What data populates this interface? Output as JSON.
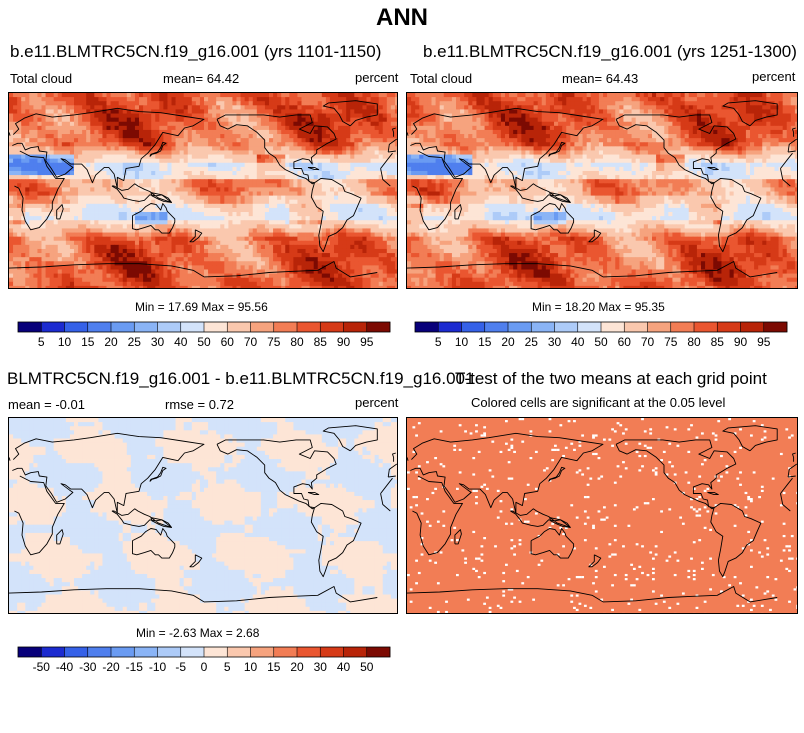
{
  "title": "ANN",
  "panels": [
    {
      "id": "p1",
      "title": "b.e11.BLMTRC5CN.f19_g16.001 (yrs 1101-1150)",
      "left_label": "Total cloud",
      "center_label": "mean=  64.42",
      "right_label": "percent",
      "stats": "Min =  17.69 Max =  95.56",
      "kind": "cloud"
    },
    {
      "id": "p2",
      "title": "b.e11.BLMTRC5CN.f19_g16.001 (yrs 1251-1300)",
      "left_label": "Total cloud",
      "center_label": "mean=  64.43",
      "right_label": "percent",
      "stats": "Min =  18.20 Max =  95.35",
      "kind": "cloud"
    },
    {
      "id": "p3",
      "title": "BLMTRC5CN.f19_g16.001 - b.e11.BLMTRC5CN.f19_g16.001",
      "left_label": "mean =  -0.01",
      "center_label": "rmse =   0.72",
      "right_label": "percent",
      "stats": "Min =  -2.63 Max =   2.68",
      "kind": "diff"
    },
    {
      "id": "p4",
      "title": "T-test of the two means at each grid point",
      "subtitle": "Colored cells are significant at the 0.05 level",
      "kind": "ttest"
    }
  ],
  "chart_data": [
    {
      "type": "heatmap",
      "title": "b.e11.BLMTRC5CN.f19_g16.001 (yrs 1101-1150)",
      "variable": "Total cloud",
      "units": "percent",
      "mean": 64.42,
      "min": 17.69,
      "max": 95.56,
      "colorbar_levels": [
        5,
        10,
        15,
        20,
        25,
        30,
        40,
        50,
        60,
        70,
        75,
        80,
        85,
        90,
        95
      ],
      "colorbar_colors": [
        "#08007a",
        "#1c2bd0",
        "#3561e8",
        "#4f7fee",
        "#6a9bf2",
        "#8ab4f6",
        "#adcbf8",
        "#d3e3fa",
        "#fde5d6",
        "#fac8ae",
        "#f6a37e",
        "#f27d55",
        "#ea5630",
        "#d63a17",
        "#b82408",
        "#7c0a02"
      ]
    },
    {
      "type": "heatmap",
      "title": "b.e11.BLMTRC5CN.f19_g16.001 (yrs 1251-1300)",
      "variable": "Total cloud",
      "units": "percent",
      "mean": 64.43,
      "min": 18.2,
      "max": 95.35,
      "colorbar_levels": [
        5,
        10,
        15,
        20,
        25,
        30,
        40,
        50,
        60,
        70,
        75,
        80,
        85,
        90,
        95
      ],
      "colorbar_colors": [
        "#08007a",
        "#1c2bd0",
        "#3561e8",
        "#4f7fee",
        "#6a9bf2",
        "#8ab4f6",
        "#adcbf8",
        "#d3e3fa",
        "#fde5d6",
        "#fac8ae",
        "#f6a37e",
        "#f27d55",
        "#ea5630",
        "#d63a17",
        "#b82408",
        "#7c0a02"
      ]
    },
    {
      "type": "heatmap",
      "title": "BLMTRC5CN.f19_g16.001 - b.e11.BLMTRC5CN.f19_g16.001",
      "units": "percent",
      "mean": -0.01,
      "rmse": 0.72,
      "min": -2.63,
      "max": 2.68,
      "colorbar_levels": [
        -50,
        -40,
        -30,
        -20,
        -15,
        -10,
        -5,
        0,
        5,
        10,
        15,
        20,
        30,
        40,
        50
      ],
      "colorbar_colors": [
        "#08007a",
        "#1c2bd0",
        "#3561e8",
        "#4f7fee",
        "#6a9bf2",
        "#8ab4f6",
        "#adcbf8",
        "#d3e3fa",
        "#fde5d6",
        "#fac8ae",
        "#f6a37e",
        "#f27d55",
        "#ea5630",
        "#d63a17",
        "#b82408",
        "#7c0a02"
      ]
    },
    {
      "type": "heatmap",
      "title": "T-test of the two means at each grid point",
      "subtitle": "Colored cells are significant at the 0.05 level",
      "significance_level": 0.05,
      "significant_color": "#f27d55",
      "nonsignificant_color": "#ffffff"
    }
  ]
}
